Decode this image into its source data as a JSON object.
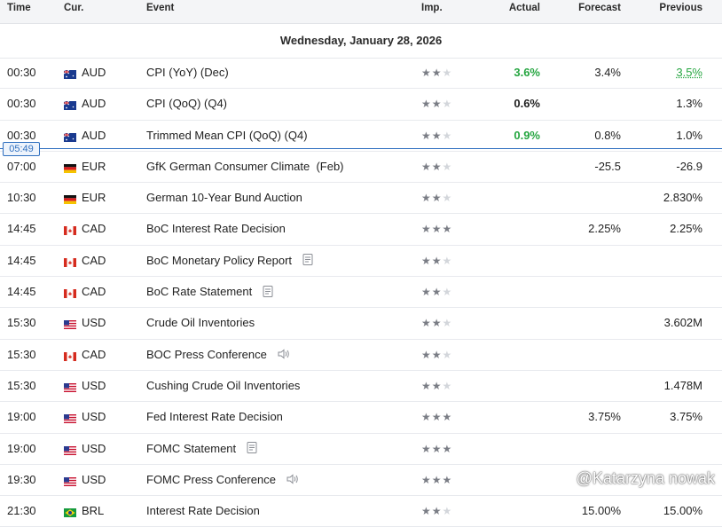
{
  "header": {
    "time": "Time",
    "currency": "Cur.",
    "event": "Event",
    "importance": "Imp.",
    "actual": "Actual",
    "forecast": "Forecast",
    "previous": "Previous"
  },
  "date_label": "Wednesday, January 28, 2026",
  "current_time": "05:49",
  "watermark": "@Katarzyna nowak",
  "colors": {
    "positive": "#26a641",
    "now_line": "#2f6fbf"
  },
  "events": [
    {
      "time": "00:30",
      "currency": "AUD",
      "flag": "au",
      "event": "CPI (YoY) (Dec)",
      "stars": 2,
      "actual": "3.6%",
      "actual_color": "green",
      "forecast": "3.4%",
      "previous": "3.5%",
      "previous_color": "green",
      "icon": ""
    },
    {
      "time": "00:30",
      "currency": "AUD",
      "flag": "au",
      "event": "CPI (QoQ) (Q4)",
      "stars": 2,
      "actual": "0.6%",
      "actual_color": "",
      "forecast": "",
      "previous": "1.3%",
      "previous_color": "",
      "icon": ""
    },
    {
      "time": "00:30",
      "currency": "AUD",
      "flag": "au",
      "event": "Trimmed Mean CPI (QoQ) (Q4)",
      "stars": 2,
      "actual": "0.9%",
      "actual_color": "green",
      "forecast": "0.8%",
      "previous": "1.0%",
      "previous_color": "",
      "icon": ""
    },
    {
      "time": "07:00",
      "currency": "EUR",
      "flag": "de",
      "event": "GfK German Consumer Climate  (Feb)",
      "stars": 2,
      "actual": "",
      "actual_color": "",
      "forecast": "-25.5",
      "previous": "-26.9",
      "previous_color": "",
      "icon": ""
    },
    {
      "time": "10:30",
      "currency": "EUR",
      "flag": "de",
      "event": "German 10-Year Bund Auction",
      "stars": 2,
      "actual": "",
      "actual_color": "",
      "forecast": "",
      "previous": "2.830%",
      "previous_color": "",
      "icon": ""
    },
    {
      "time": "14:45",
      "currency": "CAD",
      "flag": "ca",
      "event": "BoC Interest Rate Decision",
      "stars": 3,
      "actual": "",
      "actual_color": "",
      "forecast": "2.25%",
      "previous": "2.25%",
      "previous_color": "",
      "icon": ""
    },
    {
      "time": "14:45",
      "currency": "CAD",
      "flag": "ca",
      "event": "BoC Monetary Policy Report",
      "stars": 2,
      "actual": "",
      "actual_color": "",
      "forecast": "",
      "previous": "",
      "previous_color": "",
      "icon": "document-icon"
    },
    {
      "time": "14:45",
      "currency": "CAD",
      "flag": "ca",
      "event": "BoC Rate Statement",
      "stars": 2,
      "actual": "",
      "actual_color": "",
      "forecast": "",
      "previous": "",
      "previous_color": "",
      "icon": "document-icon"
    },
    {
      "time": "15:30",
      "currency": "USD",
      "flag": "us",
      "event": "Crude Oil Inventories",
      "stars": 2,
      "actual": "",
      "actual_color": "",
      "forecast": "",
      "previous": "3.602M",
      "previous_color": "",
      "icon": ""
    },
    {
      "time": "15:30",
      "currency": "CAD",
      "flag": "ca",
      "event": "BOC Press Conference",
      "stars": 2,
      "actual": "",
      "actual_color": "",
      "forecast": "",
      "previous": "",
      "previous_color": "",
      "icon": "speaker-icon"
    },
    {
      "time": "15:30",
      "currency": "USD",
      "flag": "us",
      "event": "Cushing Crude Oil Inventories",
      "stars": 2,
      "actual": "",
      "actual_color": "",
      "forecast": "",
      "previous": "1.478M",
      "previous_color": "",
      "icon": ""
    },
    {
      "time": "19:00",
      "currency": "USD",
      "flag": "us",
      "event": "Fed Interest Rate Decision",
      "stars": 3,
      "actual": "",
      "actual_color": "",
      "forecast": "3.75%",
      "previous": "3.75%",
      "previous_color": "",
      "icon": ""
    },
    {
      "time": "19:00",
      "currency": "USD",
      "flag": "us",
      "event": "FOMC Statement",
      "stars": 3,
      "actual": "",
      "actual_color": "",
      "forecast": "",
      "previous": "",
      "previous_color": "",
      "icon": "document-icon"
    },
    {
      "time": "19:30",
      "currency": "USD",
      "flag": "us",
      "event": "FOMC Press Conference",
      "stars": 3,
      "actual": "",
      "actual_color": "",
      "forecast": "",
      "previous": "",
      "previous_color": "",
      "icon": "speaker-icon"
    },
    {
      "time": "21:30",
      "currency": "BRL",
      "flag": "br",
      "event": "Interest Rate Decision",
      "stars": 2,
      "actual": "",
      "actual_color": "",
      "forecast": "15.00%",
      "previous": "15.00%",
      "previous_color": "",
      "icon": ""
    }
  ]
}
